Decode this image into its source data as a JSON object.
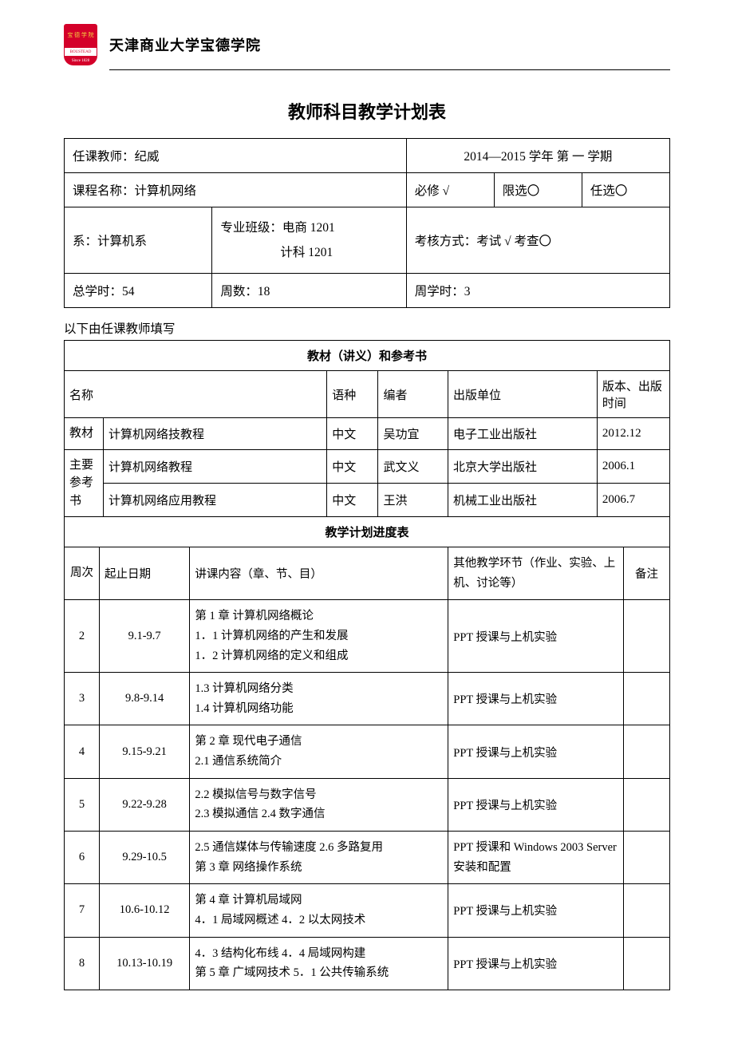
{
  "header": {
    "school_name": "天津商业大学宝德学院",
    "logo_text_top": "宝 德 学 院",
    "logo_text_mid": "BOUSTEAD",
    "logo_text_bot": "Since 1828"
  },
  "title": "教师科目教学计划表",
  "info": {
    "teacher_label": "任课教师：纪威",
    "term": "2014—2015 学年 第 一 学期",
    "course_label": "课程名称：计算机网络",
    "required": "必修 √",
    "limited": "限选〇",
    "optional": "任选〇",
    "dept": "系：计算机系",
    "major": "专业班级：电商 1201",
    "major2": "计科 1201",
    "assess": "考核方式：考试  √ 考查〇",
    "total_hours": "总学时：54",
    "weeks": "周数：18",
    "week_hours": "周学时：3"
  },
  "note": "以下由任课教师填写",
  "books": {
    "section_title": "教材（讲义）和参考书",
    "headers": {
      "name": "名称",
      "lang": "语种",
      "author": "编者",
      "publisher": "出版单位",
      "version": "版本、出版时间"
    },
    "textbook_label": "教材",
    "ref_label": "主要参考书",
    "rows": [
      {
        "name": "计算机网络技教程",
        "lang": "中文",
        "author": "吴功宜",
        "publisher": "电子工业出版社",
        "version": "2012.12"
      },
      {
        "name": "计算机网络教程",
        "lang": "中文",
        "author": "武文义",
        "publisher": "北京大学出版社",
        "version": "2006.1"
      },
      {
        "name": "计算机网络应用教程",
        "lang": "中文",
        "author": "王洪",
        "publisher": "机械工业出版社",
        "version": "2006.7"
      }
    ]
  },
  "schedule": {
    "section_title": "教学计划进度表",
    "headers": {
      "week": "周次",
      "date": "起止日期",
      "content": "讲课内容（章、节、目）",
      "other": "其他教学环节（作业、实验、上机、讨论等）",
      "remark": "备注"
    },
    "rows": [
      {
        "week": "2",
        "date": "9.1-9.7",
        "content": "第 1 章 计算机网络概论\n1．1 计算机网络的产生和发展\n1．2 计算机网络的定义和组成",
        "other": "PPT 授课与上机实验",
        "remark": ""
      },
      {
        "week": "3",
        "date": "9.8-9.14",
        "content": "1.3  计算机网络分类\n1.4 计算机网络功能",
        "other": "PPT 授课与上机实验",
        "remark": ""
      },
      {
        "week": "4",
        "date": "9.15-9.21",
        "content": "第 2 章  现代电子通信\n2.1 通信系统简介",
        "other": "PPT 授课与上机实验",
        "remark": ""
      },
      {
        "week": "5",
        "date": "9.22-9.28",
        "content": "2.2  模拟信号与数字信号\n2.3  模拟通信 2.4  数字通信",
        "other": "PPT 授课与上机实验",
        "remark": ""
      },
      {
        "week": "6",
        "date": "9.29-10.5",
        "content": "2.5 通信媒体与传输速度 2.6  多路复用\n第 3 章  网络操作系统",
        "other": "PPT 授课和 Windows 2003 Server 安装和配置",
        "remark": ""
      },
      {
        "week": "7",
        "date": "10.6-10.12",
        "content": "第 4 章  计算机局域网\n4．1 局域网概述  4．2 以太网技术",
        "other": "PPT 授课与上机实验",
        "remark": ""
      },
      {
        "week": "8",
        "date": "10.13-10.19",
        "content": "4．3  结构化布线  4．4 局域网构建\n第 5 章 广域网技术  5．1 公共传输系统",
        "other": "PPT 授课与上机实验",
        "remark": ""
      }
    ]
  }
}
